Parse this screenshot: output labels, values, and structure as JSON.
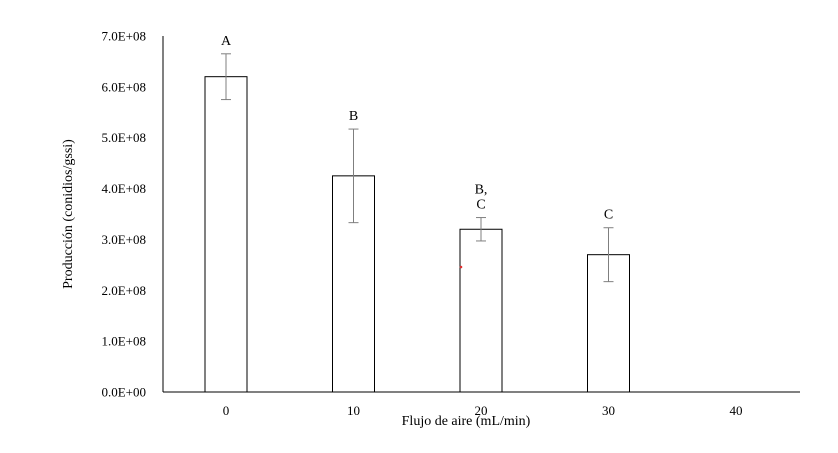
{
  "chart_data": {
    "type": "bar",
    "categories": [
      "0",
      "10",
      "20",
      "30",
      "40"
    ],
    "values": [
      620000000,
      425000000,
      320000000,
      270000000,
      null
    ],
    "error_low": [
      575000000,
      333000000,
      297000000,
      217000000,
      null
    ],
    "error_high": [
      665000000,
      517000000,
      343000000,
      323000000,
      null
    ],
    "significance_labels": [
      [
        "A"
      ],
      [
        "B"
      ],
      [
        "B,",
        "C"
      ],
      [
        "C"
      ],
      []
    ],
    "xlabel": "Flujo de aire (mL/min)",
    "ylabel": "Producción (conidios/gssi)",
    "ylim": [
      0,
      700000000
    ],
    "yticks": [
      {
        "value": 0,
        "label": "0.0E+00"
      },
      {
        "value": 100000000,
        "label": "1.0E+08"
      },
      {
        "value": 200000000,
        "label": "2.0E+08"
      },
      {
        "value": 300000000,
        "label": "3.0E+08"
      },
      {
        "value": 400000000,
        "label": "4.0E+08"
      },
      {
        "value": 500000000,
        "label": "5.0E+08"
      },
      {
        "value": 600000000,
        "label": "6.0E+08"
      },
      {
        "value": 700000000,
        "label": "7.0E+08"
      }
    ],
    "grid": false,
    "legend": "none",
    "colors": {
      "bar_fill": "#ffffff",
      "bar_stroke": "#000000",
      "error_bar": "#7f7f7f",
      "axis": "#000000",
      "stray_mark": "#e03030"
    }
  }
}
